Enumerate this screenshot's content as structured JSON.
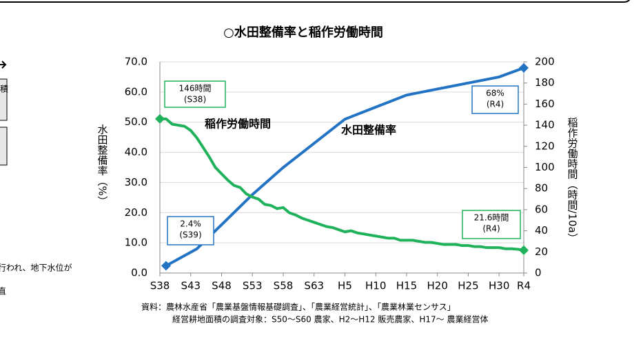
{
  "page_fragments": [
    "積",
    "行われ、地下水位が",
    "直"
  ],
  "chart_data": {
    "type": "line",
    "title": "○水田整備率と稲作労働時間",
    "y_label": "水田整備率（%）",
    "y2_label": "稲作労働時間（時間/10a）",
    "source_lines": [
      "資料：農林水産省「農業基盤情報基礎調査」、「農業経営統計」、「農業林業センサス」",
      "経営耕地面積の調査対象：S50～S60 農家、H2～H12 販売農家、H17～ 農業経営体"
    ],
    "xlim": [
      1963,
      2022
    ],
    "xticks": [
      {
        "value": 1963,
        "label": "S38"
      },
      {
        "value": 1968,
        "label": "S43"
      },
      {
        "value": 1973,
        "label": "S48"
      },
      {
        "value": 1978,
        "label": "S53"
      },
      {
        "value": 1983,
        "label": "S58"
      },
      {
        "value": 1988,
        "label": "S63"
      },
      {
        "value": 1993,
        "label": "H5"
      },
      {
        "value": 1998,
        "label": "H10"
      },
      {
        "value": 2003,
        "label": "H15"
      },
      {
        "value": 2008,
        "label": "H20"
      },
      {
        "value": 2013,
        "label": "H25"
      },
      {
        "value": 2018,
        "label": "H30"
      },
      {
        "value": 2022,
        "label": "R4"
      }
    ],
    "ylim": [
      0,
      70
    ],
    "yticks": [
      {
        "value": 0,
        "label": "0.0"
      },
      {
        "value": 10,
        "label": "10.0"
      },
      {
        "value": 20,
        "label": "20.0"
      },
      {
        "value": 30,
        "label": "30.0"
      },
      {
        "value": 40,
        "label": "40.0"
      },
      {
        "value": 50,
        "label": "50.0"
      },
      {
        "value": 60,
        "label": "60.0"
      },
      {
        "value": 70,
        "label": "70.0"
      }
    ],
    "y2lim": [
      0,
      200
    ],
    "y2ticks": [
      0,
      20,
      40,
      60,
      80,
      100,
      120,
      140,
      160,
      180,
      200
    ],
    "grid": true,
    "series": [
      {
        "name": "水田整備率",
        "color": "#2273c3",
        "axis": "y",
        "x": [
          1964,
          1969,
          1973,
          1978,
          1983,
          1988,
          1993,
          1998,
          2003,
          2008,
          2013,
          2018,
          2022
        ],
        "values": [
          2.4,
          8,
          16,
          26,
          35,
          43,
          51,
          55,
          59,
          61,
          63,
          65,
          68
        ]
      },
      {
        "name": "稲作労働時間",
        "color": "#1fb25a",
        "axis": "y2",
        "x": [
          1963,
          1964,
          1965,
          1966,
          1967,
          1968,
          1969,
          1970,
          1971,
          1972,
          1973,
          1974,
          1975,
          1976,
          1977,
          1978,
          1979,
          1980,
          1981,
          1982,
          1983,
          1984,
          1985,
          1986,
          1987,
          1988,
          1989,
          1990,
          1991,
          1992,
          1993,
          1994,
          1995,
          1996,
          1997,
          1998,
          1999,
          2000,
          2001,
          2002,
          2003,
          2004,
          2005,
          2006,
          2007,
          2008,
          2009,
          2010,
          2011,
          2012,
          2013,
          2014,
          2015,
          2016,
          2017,
          2018,
          2019,
          2020,
          2021,
          2022
        ],
        "values": [
          146,
          146,
          141,
          140,
          139,
          135,
          128,
          119,
          110,
          100,
          94,
          88,
          83,
          81,
          75,
          72,
          70,
          65,
          64,
          61,
          62,
          57,
          55,
          52,
          50,
          48,
          46,
          44,
          43,
          41,
          39,
          40,
          38,
          37,
          36,
          35,
          34,
          33,
          33,
          31,
          31,
          31,
          30,
          29,
          29,
          28,
          27,
          27,
          27,
          26,
          26,
          25,
          25,
          24,
          24,
          24,
          23,
          23,
          22.5,
          21.6
        ]
      }
    ],
    "annotations": [
      {
        "lines": [
          "146時間",
          "(S38)"
        ],
        "color": "#1fb25a"
      },
      {
        "lines": [
          "2.4%",
          "(S39)"
        ],
        "color": "#2273c3"
      },
      {
        "lines": [
          "68%",
          "(R4)"
        ],
        "color": "#2273c3"
      },
      {
        "lines": [
          "21.6時間",
          "(R4)"
        ],
        "color": "#1fb25a"
      }
    ]
  }
}
